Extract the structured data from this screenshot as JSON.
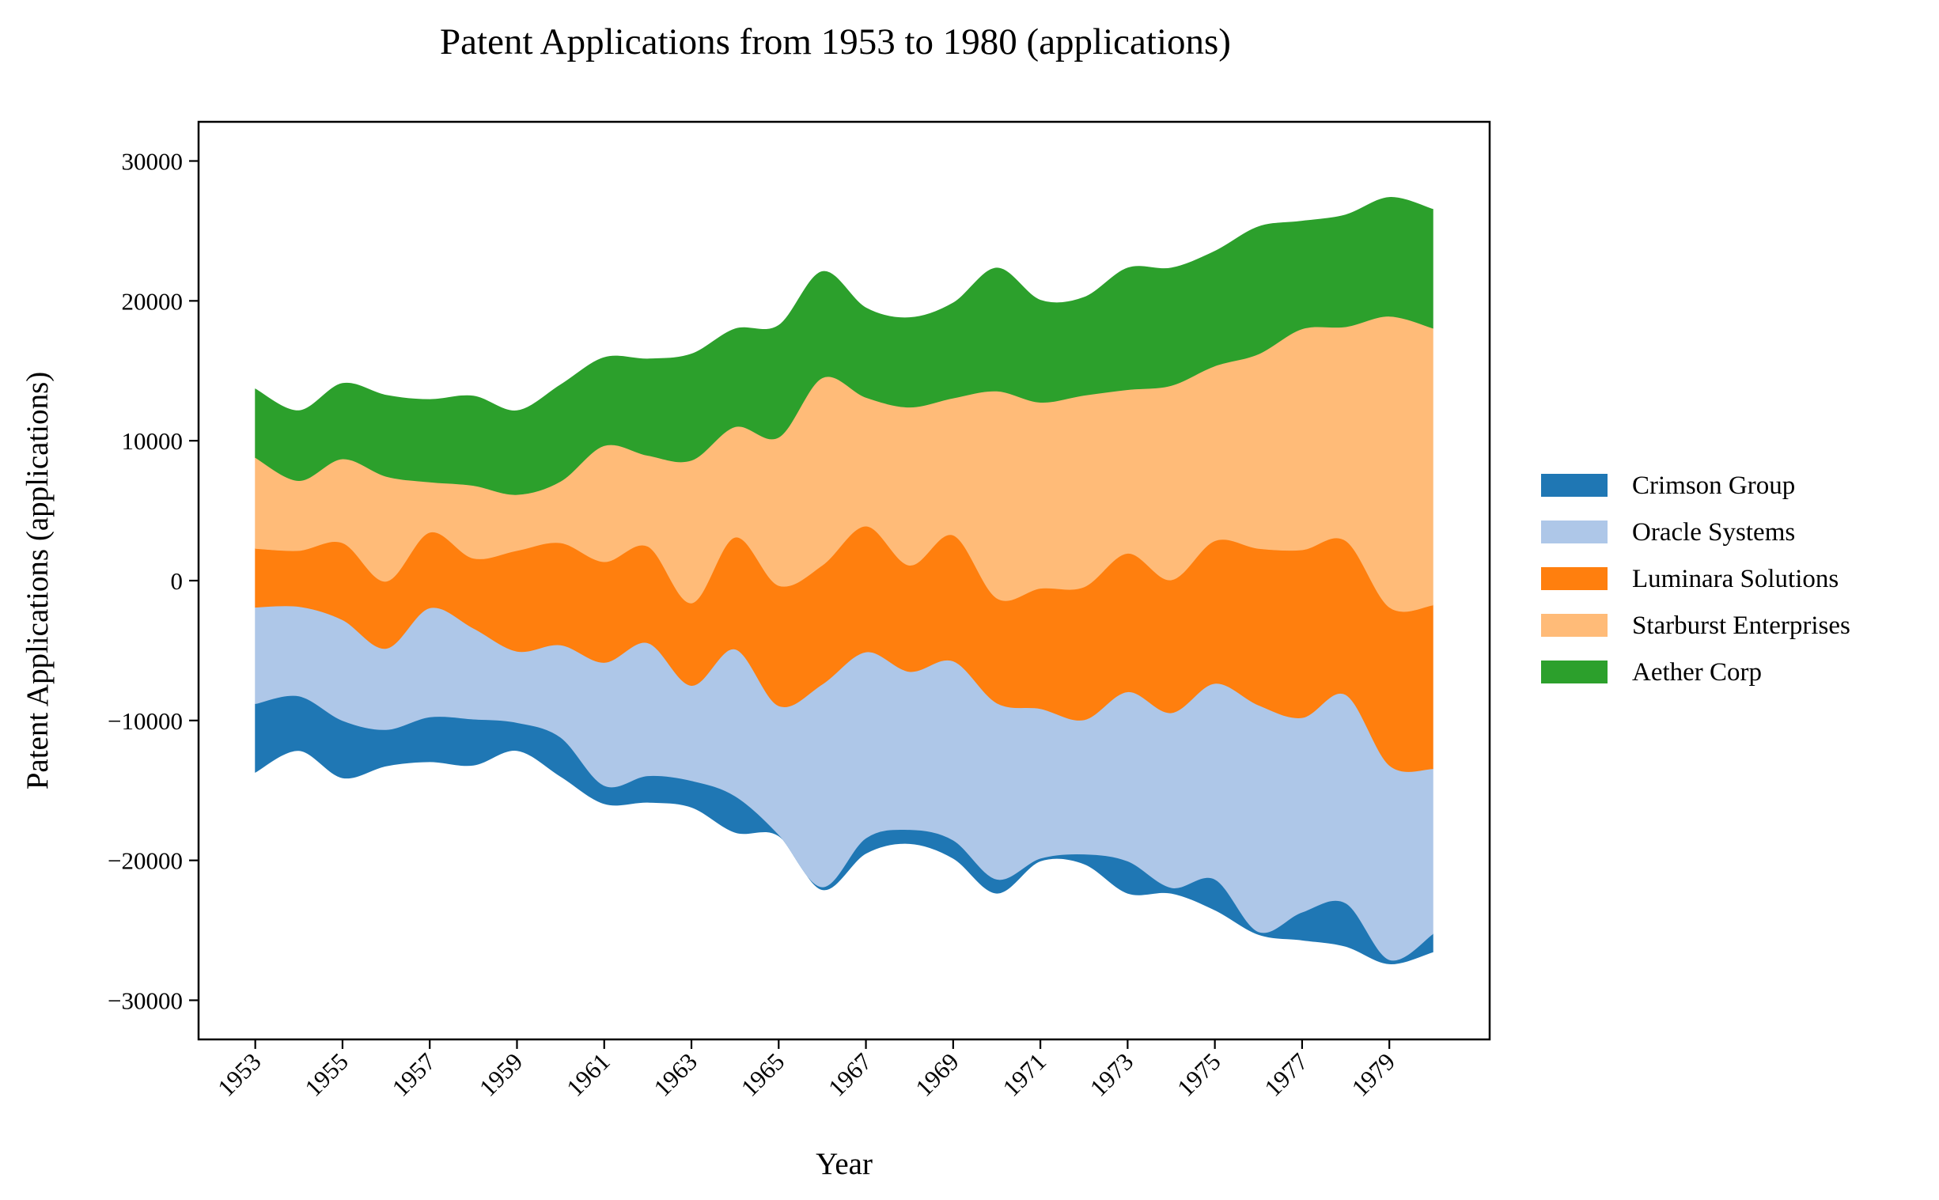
{
  "colors": {
    "Crimson Group": "#1f77b4",
    "Oracle Systems": "#aec7e8",
    "Luminara Solutions": "#ff7f0e",
    "Starburst Enterprises": "#ffbb78",
    "Aether Corp": "#2ca02c"
  },
  "chart_data": {
    "type": "area",
    "subtype": "streamgraph (symmetric baseline, smoothed)",
    "title": "Patent Applications from 1953 to 1980 (applications)",
    "xlabel": "Year",
    "ylabel": "Patent Applications (applications)",
    "x": [
      1953,
      1954,
      1955,
      1956,
      1957,
      1958,
      1959,
      1960,
      1961,
      1962,
      1963,
      1964,
      1965,
      1966,
      1967,
      1968,
      1969,
      1970,
      1971,
      1972,
      1973,
      1974,
      1975,
      1976,
      1977,
      1978,
      1979,
      1980
    ],
    "xticks": [
      "1953",
      "1955",
      "1957",
      "1959",
      "1961",
      "1963",
      "1965",
      "1967",
      "1969",
      "1971",
      "1973",
      "1975",
      "1977",
      "1979"
    ],
    "yticks": [
      -30000,
      -20000,
      -10000,
      0,
      10000,
      20000,
      30000
    ],
    "ytick_labels": [
      "−30000",
      "−20000",
      "−10000",
      "0",
      "10000",
      "20000",
      "30000"
    ],
    "ylim": [
      -32800,
      32800
    ],
    "xlim": [
      1951.7,
      1981.3
    ],
    "grid": false,
    "legend_position": "right",
    "series": [
      {
        "name": "Crimson Group",
        "values": [
          4900,
          3900,
          4100,
          2600,
          3200,
          3300,
          2000,
          2800,
          1300,
          1900,
          1900,
          2600,
          100,
          200,
          1100,
          1000,
          1300,
          1000,
          200,
          700,
          2300,
          400,
          2200,
          200,
          2000,
          3100,
          300,
          1300
        ]
      },
      {
        "name": "Oracle Systems",
        "values": [
          6900,
          6400,
          7200,
          5800,
          7800,
          6500,
          5100,
          6600,
          8800,
          9500,
          6800,
          10500,
          9200,
          14500,
          13300,
          11300,
          12800,
          12600,
          10700,
          9600,
          12100,
          12500,
          14000,
          16200,
          13900,
          14900,
          13900,
          11800
        ]
      },
      {
        "name": "Luminara Solutions",
        "values": [
          4200,
          4000,
          5500,
          4800,
          5400,
          5000,
          7200,
          7300,
          7200,
          6900,
          5900,
          8000,
          8600,
          8500,
          9000,
          7600,
          9000,
          7500,
          8600,
          9500,
          9900,
          9500,
          10200,
          11200,
          12000,
          11000,
          11300,
          11700
        ]
      },
      {
        "name": "Starburst Enterprises",
        "values": [
          6500,
          5000,
          6000,
          7500,
          3600,
          5200,
          4000,
          4400,
          8300,
          6500,
          10200,
          7900,
          10600,
          13400,
          9200,
          11300,
          9800,
          14800,
          13300,
          13700,
          11700,
          13900,
          12500,
          13900,
          15800,
          15300,
          20800,
          19800
        ]
      },
      {
        "name": "Aether Corp",
        "values": [
          4900,
          5000,
          5400,
          5800,
          5900,
          6400,
          6000,
          6900,
          6300,
          6900,
          7600,
          7000,
          8000,
          7600,
          6400,
          6400,
          6800,
          8800,
          7300,
          7000,
          8700,
          8400,
          8200,
          9100,
          7700,
          8000,
          8500,
          8500
        ]
      }
    ]
  }
}
